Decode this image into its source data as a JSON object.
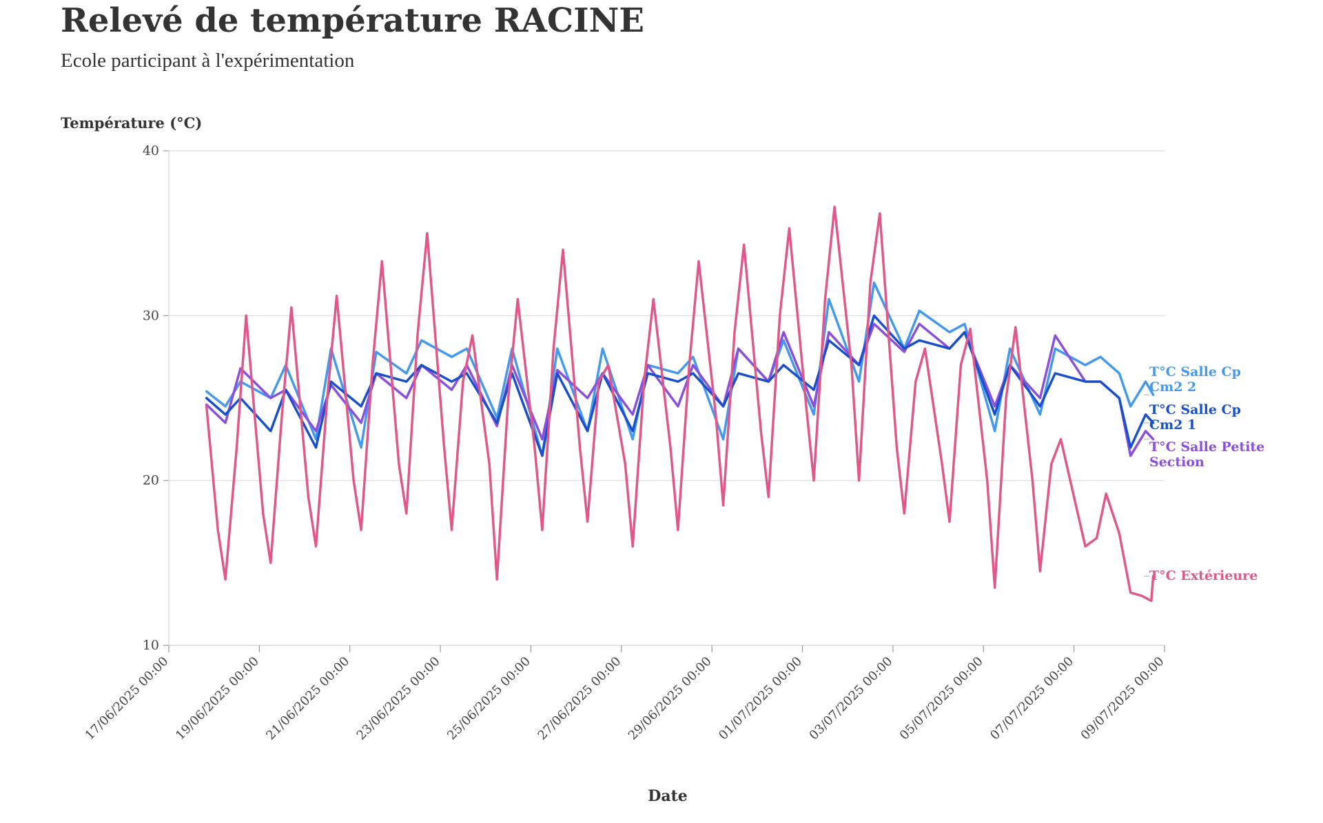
{
  "header": {
    "title": "Relevé de température RACINE",
    "subtitle": "Ecole participant à l'expérimentation"
  },
  "chart_data": {
    "type": "line",
    "title": "Relevé de température RACINE",
    "subtitle": "Ecole participant à l'expérimentation",
    "xlabel": "Date",
    "ylabel": "Température (°C)",
    "ylim": [
      10,
      40
    ],
    "yticks": [
      "10",
      "20",
      "30",
      "40"
    ],
    "xlim": [
      "2025-06-17 00:00",
      "2025-07-09 00:00"
    ],
    "xtick_labels": [
      "17/06/2025 00:00",
      "19/06/2025 00:00",
      "21/06/2025 00:00",
      "23/06/2025 00:00",
      "25/06/2025 00:00",
      "27/06/2025 00:00",
      "29/06/2025 00:00",
      "01/07/2025 00:00",
      "03/07/2025 00:00",
      "05/07/2025 00:00",
      "07/07/2025 00:00",
      "09/07/2025 00:00"
    ],
    "grid": "horizontal",
    "legend": "right, end of lines",
    "series": [
      {
        "name": "T°C Extérieure",
        "color": "#e0578a",
        "x": [
          "2025-06-17 20:00",
          "2025-06-18 02:00",
          "2025-06-18 06:00",
          "2025-06-18 12:00",
          "2025-06-18 17:00",
          "2025-06-19 02:00",
          "2025-06-19 06:00",
          "2025-06-19 12:00",
          "2025-06-19 17:00",
          "2025-06-20 02:00",
          "2025-06-20 06:00",
          "2025-06-20 12:00",
          "2025-06-20 17:00",
          "2025-06-21 02:00",
          "2025-06-21 06:00",
          "2025-06-21 12:00",
          "2025-06-21 17:00",
          "2025-06-22 02:00",
          "2025-06-22 06:00",
          "2025-06-22 12:00",
          "2025-06-22 17:00",
          "2025-06-23 02:00",
          "2025-06-23 06:00",
          "2025-06-23 12:00",
          "2025-06-23 17:00",
          "2025-06-24 02:00",
          "2025-06-24 06:00",
          "2025-06-24 12:00",
          "2025-06-24 17:00",
          "2025-06-25 02:00",
          "2025-06-25 06:00",
          "2025-06-25 12:00",
          "2025-06-25 17:00",
          "2025-06-26 02:00",
          "2025-06-26 06:00",
          "2025-06-26 12:00",
          "2025-06-26 17:00",
          "2025-06-27 02:00",
          "2025-06-27 06:00",
          "2025-06-27 12:00",
          "2025-06-27 17:00",
          "2025-06-28 02:00",
          "2025-06-28 06:00",
          "2025-06-28 12:00",
          "2025-06-28 17:00",
          "2025-06-29 02:00",
          "2025-06-29 06:00",
          "2025-06-29 12:00",
          "2025-06-29 17:00",
          "2025-06-30 02:00",
          "2025-06-30 06:00",
          "2025-06-30 12:00",
          "2025-06-30 17:00",
          "2025-07-01 02:00",
          "2025-07-01 06:00",
          "2025-07-01 12:00",
          "2025-07-01 17:00",
          "2025-07-02 02:00",
          "2025-07-02 06:00",
          "2025-07-02 12:00",
          "2025-07-02 17:00",
          "2025-07-03 02:00",
          "2025-07-03 06:00",
          "2025-07-03 12:00",
          "2025-07-03 17:00",
          "2025-07-04 02:00",
          "2025-07-04 06:00",
          "2025-07-04 12:00",
          "2025-07-04 17:00",
          "2025-07-05 02:00",
          "2025-07-05 06:00",
          "2025-07-05 12:00",
          "2025-07-05 17:00",
          "2025-07-06 02:00",
          "2025-07-06 06:00",
          "2025-07-06 12:00",
          "2025-07-06 17:00",
          "2025-07-07 02:00",
          "2025-07-07 06:00",
          "2025-07-07 12:00",
          "2025-07-07 17:00",
          "2025-07-08 00:00",
          "2025-07-08 06:00",
          "2025-07-08 12:00",
          "2025-07-08 17:00",
          "2025-07-08 18:00"
        ],
        "y": [
          24.5,
          17,
          14,
          22,
          30,
          18,
          15,
          24,
          30.5,
          19,
          16,
          25,
          31.2,
          20,
          17,
          27,
          33.3,
          21,
          18,
          29,
          35,
          22,
          17,
          26,
          28.8,
          21,
          14,
          25,
          31,
          22,
          17,
          28,
          34,
          22,
          17.5,
          26,
          27,
          21,
          16,
          26,
          31,
          22,
          17,
          27,
          33.3,
          24,
          18.5,
          29,
          34.3,
          23,
          19,
          30,
          35.3,
          24.5,
          20,
          31,
          36.6,
          27,
          20,
          32,
          36.2,
          22,
          18,
          26,
          28,
          21,
          17.5,
          27,
          29.2,
          20,
          13.5,
          25,
          29.3,
          20,
          14.5,
          21,
          22.5,
          18,
          16,
          16.5,
          19.2,
          16.8,
          13.2,
          13,
          12.7,
          14.2
        ]
      },
      {
        "name": "T°C Salle Cp Cm2 2",
        "color": "#4499ee",
        "x": [
          "2025-06-17 20:00",
          "2025-06-18 06:00",
          "2025-06-18 14:00",
          "2025-06-19 06:00",
          "2025-06-19 14:00",
          "2025-06-20 06:00",
          "2025-06-20 14:00",
          "2025-06-21 06:00",
          "2025-06-21 14:00",
          "2025-06-22 06:00",
          "2025-06-22 14:00",
          "2025-06-23 06:00",
          "2025-06-23 14:00",
          "2025-06-24 06:00",
          "2025-06-24 14:00",
          "2025-06-25 06:00",
          "2025-06-25 14:00",
          "2025-06-26 06:00",
          "2025-06-26 14:00",
          "2025-06-27 06:00",
          "2025-06-27 14:00",
          "2025-06-28 06:00",
          "2025-06-28 14:00",
          "2025-06-29 06:00",
          "2025-06-29 14:00",
          "2025-06-30 06:00",
          "2025-06-30 14:00",
          "2025-07-01 06:00",
          "2025-07-01 14:00",
          "2025-07-02 06:00",
          "2025-07-02 14:00",
          "2025-07-03 06:00",
          "2025-07-03 14:00",
          "2025-07-04 06:00",
          "2025-07-04 14:00",
          "2025-07-05 06:00",
          "2025-07-05 14:00",
          "2025-07-06 06:00",
          "2025-07-06 14:00",
          "2025-07-07 06:00",
          "2025-07-07 14:00",
          "2025-07-08 00:00",
          "2025-07-08 06:00",
          "2025-07-08 14:00",
          "2025-07-08 18:00"
        ],
        "y": [
          25.4,
          24.5,
          26,
          25,
          27,
          22.5,
          28,
          22,
          27.8,
          26.5,
          28.5,
          27.5,
          28,
          23.8,
          28,
          21.5,
          28,
          23,
          28,
          22.5,
          27,
          26.5,
          27.5,
          22.5,
          28,
          26,
          28.5,
          24,
          31,
          26,
          32,
          28,
          30.3,
          29,
          29.5,
          23,
          28,
          24,
          28,
          27,
          27.5,
          26.5,
          24.5,
          26,
          25.2
        ]
      },
      {
        "name": "T°C Salle Cp Cm2 1",
        "color": "#1a4fcc",
        "x": [
          "2025-06-17 20:00",
          "2025-06-18 06:00",
          "2025-06-18 14:00",
          "2025-06-19 06:00",
          "2025-06-19 14:00",
          "2025-06-20 06:00",
          "2025-06-20 14:00",
          "2025-06-21 06:00",
          "2025-06-21 14:00",
          "2025-06-22 06:00",
          "2025-06-22 14:00",
          "2025-06-23 06:00",
          "2025-06-23 14:00",
          "2025-06-24 06:00",
          "2025-06-24 14:00",
          "2025-06-25 06:00",
          "2025-06-25 14:00",
          "2025-06-26 06:00",
          "2025-06-26 14:00",
          "2025-06-27 06:00",
          "2025-06-27 14:00",
          "2025-06-28 06:00",
          "2025-06-28 14:00",
          "2025-06-29 06:00",
          "2025-06-29 14:00",
          "2025-06-30 06:00",
          "2025-06-30 14:00",
          "2025-07-01 06:00",
          "2025-07-01 14:00",
          "2025-07-02 06:00",
          "2025-07-02 14:00",
          "2025-07-03 06:00",
          "2025-07-03 14:00",
          "2025-07-04 06:00",
          "2025-07-04 14:00",
          "2025-07-05 06:00",
          "2025-07-05 14:00",
          "2025-07-06 06:00",
          "2025-07-06 14:00",
          "2025-07-07 06:00",
          "2025-07-07 14:00",
          "2025-07-08 00:00",
          "2025-07-08 06:00",
          "2025-07-08 14:00",
          "2025-07-08 18:00"
        ],
        "y": [
          25,
          24,
          25,
          23,
          25.5,
          22,
          26,
          24.5,
          26.5,
          26,
          27,
          26,
          26.5,
          23.5,
          26.5,
          21.5,
          26.5,
          23,
          26.5,
          23,
          26.5,
          26,
          26.5,
          24.5,
          26.5,
          26,
          27,
          25.5,
          28.5,
          27,
          30,
          28,
          28.5,
          28,
          29,
          24,
          27,
          24.5,
          26.5,
          26,
          26,
          25,
          22,
          24,
          23.5
        ]
      },
      {
        "name": "T°C Salle Petite Section",
        "color": "#8a4fdd",
        "x": [
          "2025-06-17 20:00",
          "2025-06-18 06:00",
          "2025-06-18 14:00",
          "2025-06-19 06:00",
          "2025-06-19 14:00",
          "2025-06-20 06:00",
          "2025-06-20 14:00",
          "2025-06-21 06:00",
          "2025-06-21 14:00",
          "2025-06-22 06:00",
          "2025-06-22 14:00",
          "2025-06-23 06:00",
          "2025-06-23 14:00",
          "2025-06-24 06:00",
          "2025-06-24 14:00",
          "2025-06-25 06:00",
          "2025-06-25 14:00",
          "2025-06-26 06:00",
          "2025-06-26 14:00",
          "2025-06-27 06:00",
          "2025-06-27 14:00",
          "2025-06-28 06:00",
          "2025-06-28 14:00",
          "2025-06-29 06:00",
          "2025-06-29 14:00",
          "2025-06-30 06:00",
          "2025-06-30 14:00",
          "2025-07-01 06:00",
          "2025-07-01 14:00",
          "2025-07-02 06:00",
          "2025-07-02 14:00",
          "2025-07-03 06:00",
          "2025-07-03 14:00",
          "2025-07-04 06:00",
          "2025-07-04 14:00",
          "2025-07-05 06:00",
          "2025-07-05 14:00",
          "2025-07-06 06:00",
          "2025-07-06 14:00",
          "2025-07-07 06:00",
          "2025-07-07 14:00",
          "2025-07-08 00:00",
          "2025-07-08 06:00",
          "2025-07-08 14:00",
          "2025-07-08 18:00"
        ],
        "y": [
          24.6,
          23.5,
          26.8,
          25,
          25.5,
          23,
          25.8,
          23.5,
          26.5,
          25,
          27,
          25.5,
          27,
          23.3,
          27,
          22.5,
          26.7,
          25,
          26.5,
          24,
          27,
          24.5,
          27,
          24.5,
          28,
          26,
          29,
          24.5,
          29,
          27,
          29.5,
          27.8,
          29.5,
          28,
          29,
          24.5,
          27,
          25,
          28.8,
          26,
          26,
          25,
          21.5,
          23,
          22.5
        ]
      }
    ]
  }
}
